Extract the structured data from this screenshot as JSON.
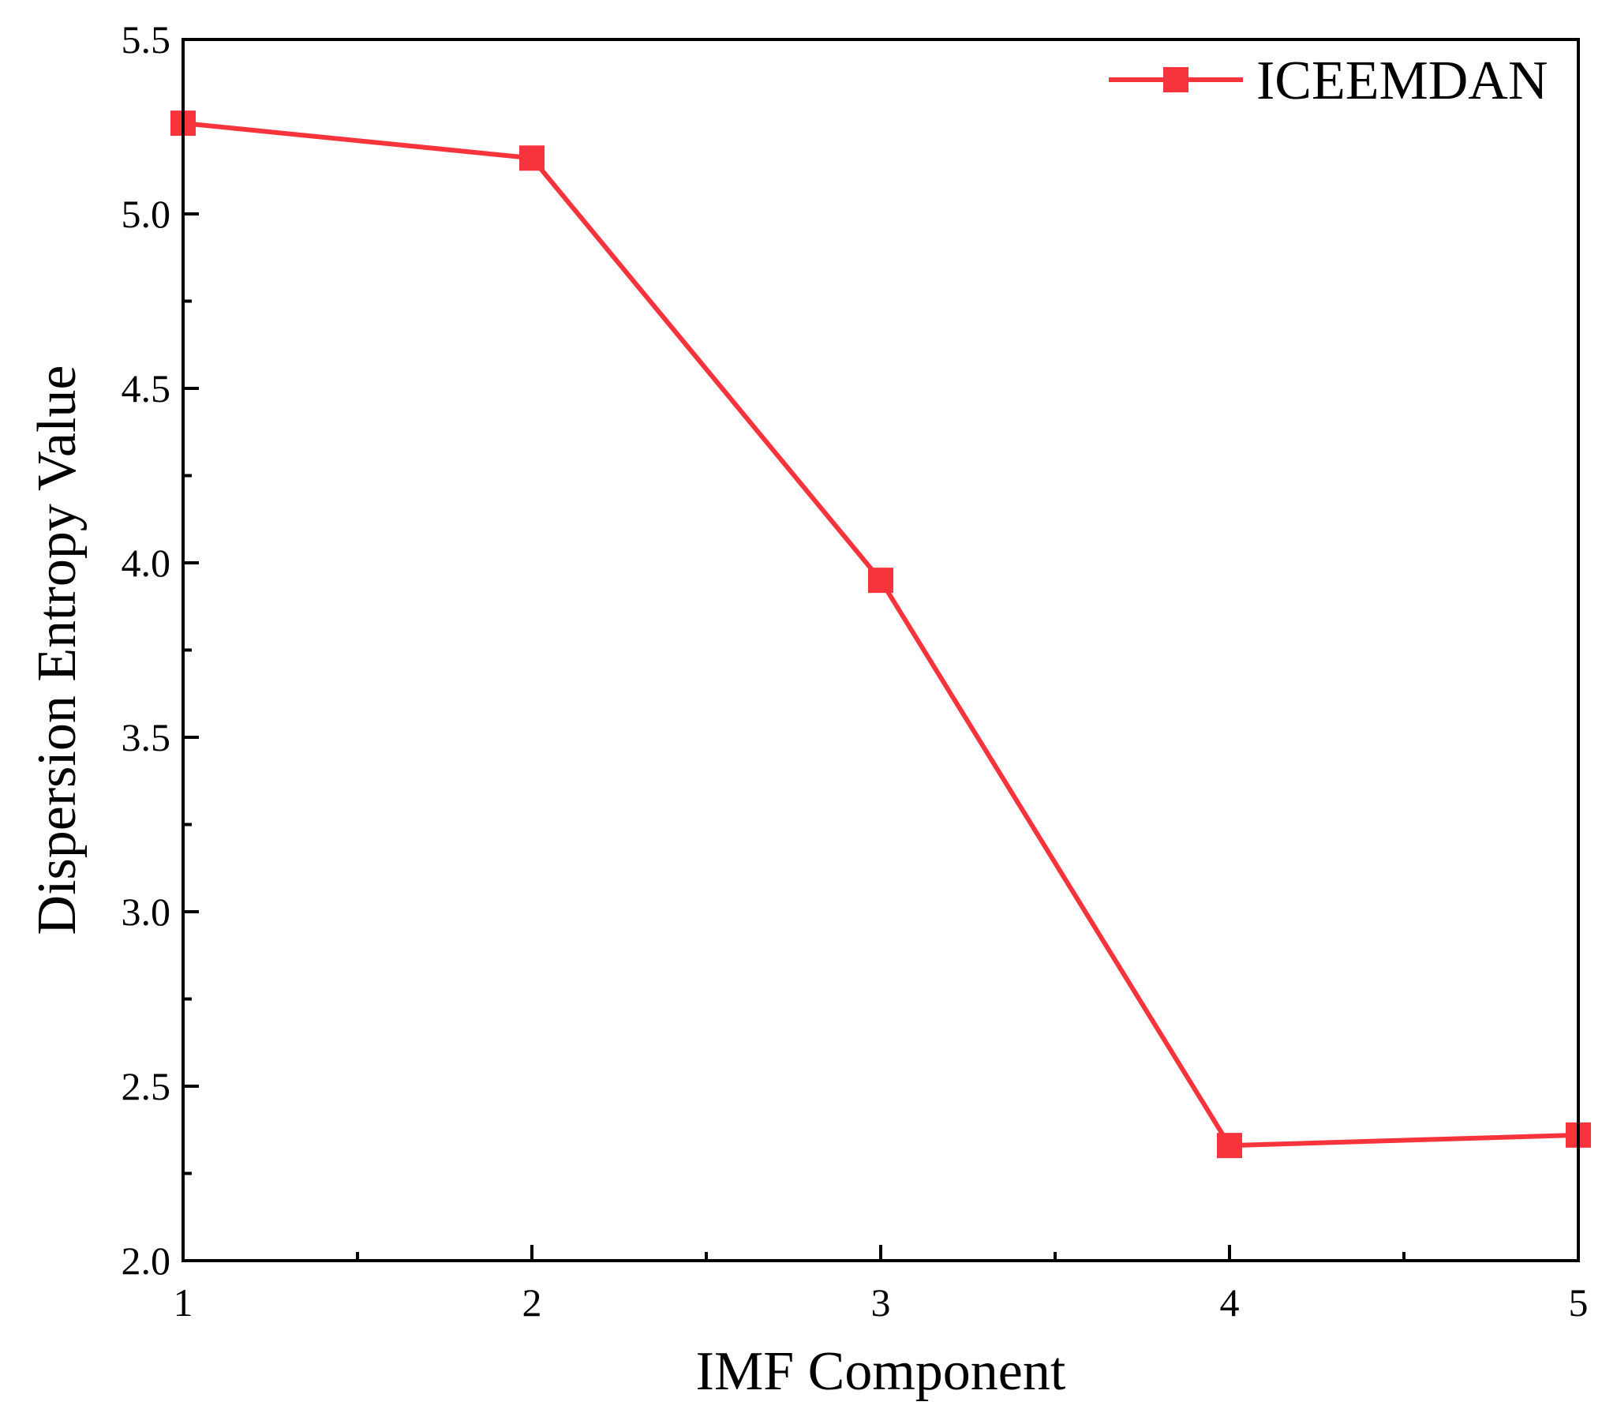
{
  "chart_data": {
    "type": "line",
    "title": "",
    "xlabel": "IMF Component",
    "ylabel": "Dispersion Entropy Value",
    "x": [
      1,
      2,
      3,
      4,
      5
    ],
    "x_ticks": [
      "1",
      "2",
      "3",
      "4",
      "5"
    ],
    "y_ticks": [
      "2.0",
      "2.5",
      "3.0",
      "3.5",
      "4.0",
      "4.5",
      "5.0",
      "5.5"
    ],
    "xlim": [
      1,
      5
    ],
    "ylim": [
      2.0,
      5.5
    ],
    "grid": false,
    "legend_position": "top-right",
    "series": [
      {
        "name": "ICEEMDAN",
        "color": "#f7333b",
        "marker": "square",
        "values": [
          5.26,
          5.16,
          3.95,
          2.33,
          2.36
        ]
      }
    ]
  }
}
